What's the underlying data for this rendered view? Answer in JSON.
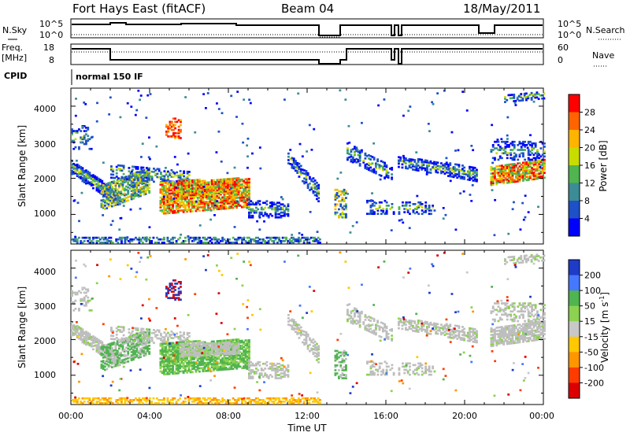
{
  "header": {
    "station": "Fort Hays East (fitACF)",
    "beam": "Beam 04",
    "date": "18/May/2011"
  },
  "strips": {
    "nsky_label": "N.Sky",
    "nsearch_label": "N.Search",
    "nsky_ticks": [
      "10^5",
      "10^0"
    ],
    "nsearch_ticks": [
      "10^5",
      "10^0"
    ],
    "freq_label_1": "Freq.",
    "freq_label_2": "[MHz]",
    "freq_ticks": [
      "18",
      "8"
    ],
    "nave_label": "Nave",
    "nave_ticks": [
      "60",
      "0"
    ],
    "cpid_label": "CPID",
    "cpid_value": "normal 150 IF"
  },
  "chart_data": [
    {
      "type": "heatmap",
      "panel": "power",
      "ylabel": "Slant Range [km]",
      "xlabel": "",
      "xlim_hours": [
        0,
        24
      ],
      "ylim_km": [
        180,
        4500
      ],
      "y_ticks": [
        "1000",
        "2000",
        "3000",
        "4000"
      ],
      "colorbar_label": "Power [dB]",
      "colorbar_ticks": [
        "4",
        "8",
        "12",
        "16",
        "20",
        "24",
        "28"
      ],
      "colors": [
        "#0000ff",
        "#1e50c8",
        "#3c8c96",
        "#50b450",
        "#c8dc00",
        "#ffb400",
        "#ff6400",
        "#ff0000"
      ],
      "data_gaps_hours": [
        [
          12.6,
          13.3
        ],
        [
          16.4,
          16.6
        ],
        [
          20.7,
          21.3
        ]
      ]
    },
    {
      "type": "heatmap",
      "panel": "velocity",
      "ylabel": "Slant Range [km]",
      "xlabel": "Time UT",
      "x_ticks": [
        "00:00",
        "04:00",
        "08:00",
        "12:00",
        "16:00",
        "20:00",
        "00:00"
      ],
      "xlim_hours": [
        0,
        24
      ],
      "ylim_km": [
        180,
        4500
      ],
      "y_ticks": [
        "1000",
        "2000",
        "3000",
        "4000"
      ],
      "colorbar_label": "Velocity [m s",
      "colorbar_label_sup": "-1",
      "colorbar_label_end": "]",
      "colorbar_ticks": [
        "200",
        "100",
        "50",
        "15",
        "-15",
        "-50",
        "-100",
        "-200"
      ],
      "colors": [
        "#1e3cc8",
        "#4678ff",
        "#50b450",
        "#8cd250",
        "#c8c8c8",
        "#ffc800",
        "#ff9600",
        "#ff3c00",
        "#dc0000"
      ],
      "ground_scatter_color": "#bebebe",
      "data_gaps_hours": [
        [
          12.6,
          13.3
        ],
        [
          16.4,
          16.6
        ],
        [
          20.7,
          21.3
        ]
      ]
    }
  ]
}
